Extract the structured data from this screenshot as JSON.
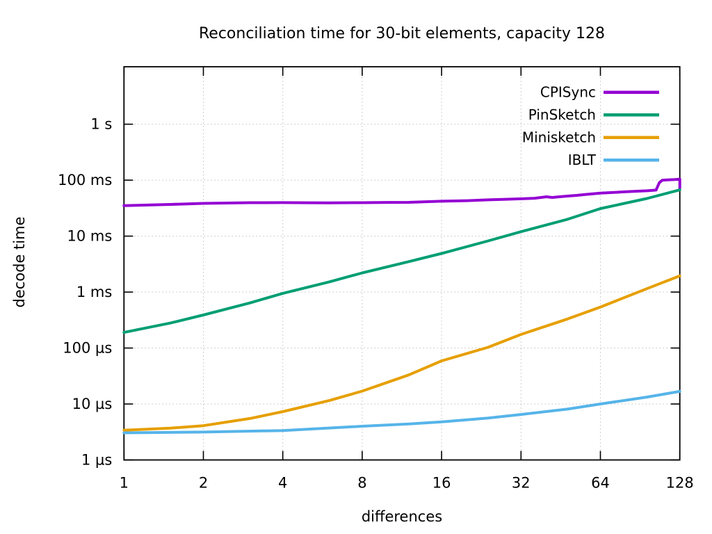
{
  "chart_data": {
    "type": "line",
    "title": "Reconciliation time for 30-bit elements, capacity 128",
    "xlabel": "differences",
    "ylabel": "decode time",
    "x_scale": "log2",
    "y_scale": "log10",
    "grid": "dotted",
    "grid_color": "#c9c9c9",
    "border_color": "#000000",
    "legend_position": "top-right-inside",
    "x_range": [
      1,
      128
    ],
    "y_range": [
      "1 µs",
      "~10 s"
    ],
    "x_ticks": [
      {
        "label": "1",
        "value": 1
      },
      {
        "label": "2",
        "value": 2
      },
      {
        "label": "4",
        "value": 4
      },
      {
        "label": "8",
        "value": 8
      },
      {
        "label": "16",
        "value": 16
      },
      {
        "label": "32",
        "value": 32
      },
      {
        "label": "64",
        "value": 64
      },
      {
        "label": "128",
        "value": 128
      }
    ],
    "y_ticks": [
      {
        "label": "1 µs",
        "value_us": 1
      },
      {
        "label": "10 µs",
        "value_us": 10
      },
      {
        "label": "100 µs",
        "value_us": 100
      },
      {
        "label": "1 ms",
        "value_us": 1000
      },
      {
        "label": "10 ms",
        "value_us": 10000
      },
      {
        "label": "100 ms",
        "value_us": 100000
      },
      {
        "label": "1 s",
        "value_us": 1000000
      }
    ],
    "unit": "µs",
    "series": [
      {
        "name": "CPISync",
        "color": "#9400d3",
        "x": [
          1,
          1.5,
          2,
          3,
          4,
          5,
          6,
          8,
          10,
          12,
          16,
          20,
          24,
          28,
          32,
          36,
          40,
          42,
          44,
          48,
          52,
          56,
          64,
          72,
          80,
          88,
          96,
          100,
          104,
          107,
          110,
          116,
          122,
          127,
          128,
          128
        ],
        "values_us": [
          35000,
          36800,
          38500,
          39600,
          39700,
          39500,
          39400,
          39600,
          40000,
          40200,
          42000,
          43000,
          44500,
          45500,
          46500,
          47500,
          50500,
          49000,
          50000,
          52000,
          53500,
          55500,
          58500,
          60500,
          62000,
          63500,
          64500,
          65500,
          66500,
          90000,
          100000,
          101500,
          102500,
          104000,
          104500,
          72000
        ]
      },
      {
        "name": "PinSketch",
        "color": "#009e73",
        "x": [
          1,
          1.5,
          2,
          3,
          4,
          6,
          8,
          12,
          16,
          24,
          32,
          48,
          64,
          96,
          128
        ],
        "values_us": [
          190,
          280,
          390,
          640,
          950,
          1520,
          2200,
          3500,
          4900,
          8200,
          12000,
          20000,
          31000,
          47000,
          67000
        ]
      },
      {
        "name": "Minisketch",
        "color": "#e69f00",
        "x": [
          1,
          1.5,
          2,
          3,
          4,
          6,
          8,
          12,
          16,
          24,
          32,
          48,
          64,
          96,
          128
        ],
        "values_us": [
          3.4,
          3.7,
          4.1,
          5.5,
          7.3,
          11.5,
          17,
          33,
          59,
          103,
          175,
          330,
          540,
          1150,
          1950
        ]
      },
      {
        "name": "IBLT",
        "color": "#56b4e9",
        "x": [
          1,
          2,
          4,
          8,
          12,
          16,
          24,
          32,
          48,
          64,
          96,
          128
        ],
        "values_us": [
          3.05,
          3.15,
          3.35,
          4.0,
          4.4,
          4.8,
          5.6,
          6.5,
          8.1,
          10.0,
          13.3,
          16.8
        ]
      }
    ]
  }
}
